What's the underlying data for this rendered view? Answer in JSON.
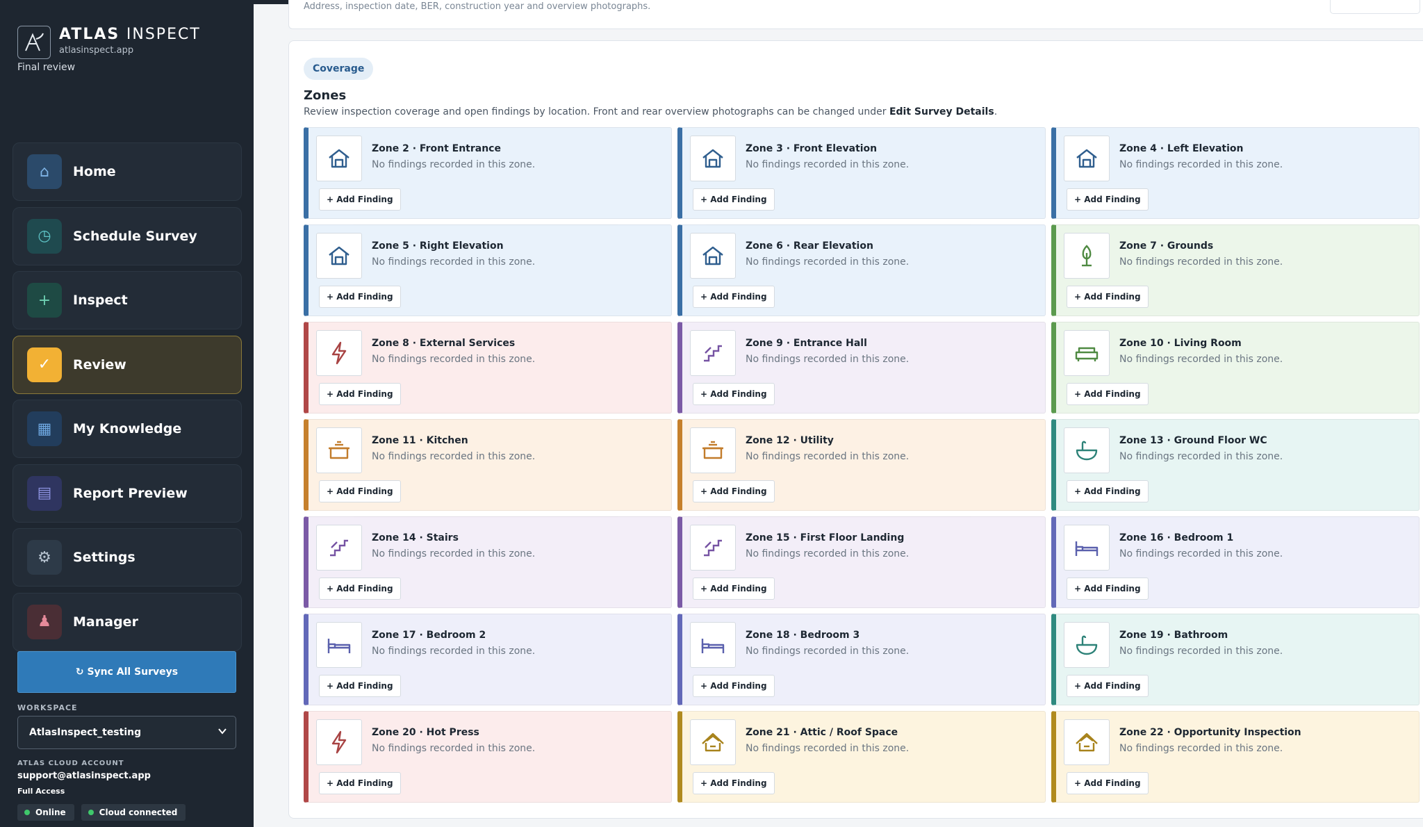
{
  "brand": {
    "title_bold": "ATLAS",
    "title_light": "INSPECT",
    "url": "atlasinspect.app",
    "subtitle": "Final review"
  },
  "nav": [
    {
      "label": "Home",
      "icon": "home-icon",
      "glyph": "⌂",
      "cls": "ic-home"
    },
    {
      "label": "Schedule Survey",
      "icon": "clock-icon",
      "glyph": "◷",
      "cls": "ic-sched"
    },
    {
      "label": "Inspect",
      "icon": "plus-icon",
      "glyph": "+",
      "cls": "ic-insp"
    },
    {
      "label": "Review",
      "icon": "check-icon",
      "glyph": "✓",
      "cls": "",
      "active": true
    },
    {
      "label": "My Knowledge",
      "icon": "grid-icon",
      "glyph": "▦",
      "cls": "ic-know"
    },
    {
      "label": "Report Preview",
      "icon": "report-icon",
      "glyph": "▤",
      "cls": "ic-rep"
    },
    {
      "label": "Settings",
      "icon": "gear-icon",
      "glyph": "⚙",
      "cls": "ic-set"
    },
    {
      "label": "Manager",
      "icon": "person-icon",
      "glyph": "♟",
      "cls": "ic-mgr"
    }
  ],
  "sidebar": {
    "sync_label": "↻ Sync All Surveys",
    "workspace_label": "WORKSPACE",
    "workspace_value": "AtlasInspect_testing",
    "account_label": "ATLAS CLOUD ACCOUNT",
    "account_email": "support@atlasinspect.app",
    "account_access": "Full Access",
    "status_online": "Online",
    "status_cloud": "Cloud connected"
  },
  "survey": {
    "description": "Address, inspection date, BER, construction year and overview photographs."
  },
  "zones_section": {
    "pill": "Coverage",
    "title": "Zones",
    "desc_prefix": "Review inspection coverage and open findings by location. Front and rear overview photographs can be changed under ",
    "desc_link": "Edit Survey Details",
    "desc_suffix": ".",
    "add_label": "+ Add Finding",
    "status_text": "No findings recorded in this zone."
  },
  "zones": [
    {
      "name": "Zone 2 · Front Entrance",
      "theme": "blue",
      "icon": "house-icon"
    },
    {
      "name": "Zone 3 · Front Elevation",
      "theme": "blue",
      "icon": "house-icon"
    },
    {
      "name": "Zone 4 · Left Elevation",
      "theme": "blue",
      "icon": "house-icon"
    },
    {
      "name": "Zone 5 · Right Elevation",
      "theme": "blue",
      "icon": "house-icon"
    },
    {
      "name": "Zone 6 · Rear Elevation",
      "theme": "blue",
      "icon": "house-icon"
    },
    {
      "name": "Zone 7 · Grounds",
      "theme": "green",
      "icon": "tree-icon"
    },
    {
      "name": "Zone 8 · External Services",
      "theme": "red",
      "icon": "lightning-icon"
    },
    {
      "name": "Zone 9 · Entrance Hall",
      "theme": "purple",
      "icon": "stairs-icon"
    },
    {
      "name": "Zone 10 · Living Room",
      "theme": "green",
      "icon": "sofa-icon"
    },
    {
      "name": "Zone 11 · Kitchen",
      "theme": "orange",
      "icon": "pot-icon"
    },
    {
      "name": "Zone 12 · Utility",
      "theme": "orange",
      "icon": "pot-icon"
    },
    {
      "name": "Zone 13 · Ground Floor WC",
      "theme": "teal",
      "icon": "basin-icon"
    },
    {
      "name": "Zone 14 · Stairs",
      "theme": "purple",
      "icon": "stairs-icon"
    },
    {
      "name": "Zone 15 · First Floor Landing",
      "theme": "purple",
      "icon": "stairs-icon"
    },
    {
      "name": "Zone 16 · Bedroom 1",
      "theme": "indigo",
      "icon": "bed-icon"
    },
    {
      "name": "Zone 17 · Bedroom 2",
      "theme": "indigo",
      "icon": "bed-icon"
    },
    {
      "name": "Zone 18 · Bedroom 3",
      "theme": "indigo",
      "icon": "bed-icon"
    },
    {
      "name": "Zone 19 · Bathroom",
      "theme": "teal",
      "icon": "basin-icon"
    },
    {
      "name": "Zone 20 · Hot Press",
      "theme": "red",
      "icon": "lightning-icon"
    },
    {
      "name": "Zone 21 · Attic / Roof Space",
      "theme": "gold",
      "icon": "roof-icon"
    },
    {
      "name": "Zone 22 · Opportunity Inspection",
      "theme": "gold",
      "icon": "roof-icon"
    }
  ],
  "colors": {
    "sidebar_bg": "#1e2630",
    "accent_blue": "#2f7ab8",
    "active_nav": "#f2b134",
    "online_dot": "#3fc86b"
  }
}
